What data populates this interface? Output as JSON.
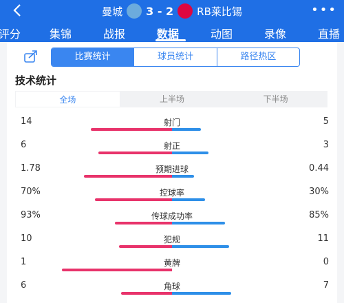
{
  "header": {
    "home_team": "曼城",
    "score": "3 - 2",
    "away_team": "RB莱比锡",
    "home_logo_color": "#6cabdd",
    "away_logo_color": "#dd0741",
    "more_label": "•••"
  },
  "nav_tabs": [
    {
      "label": "评分"
    },
    {
      "label": "集锦"
    },
    {
      "label": "战报"
    },
    {
      "label": "数据",
      "active": true
    },
    {
      "label": "动图"
    },
    {
      "label": "录像"
    },
    {
      "label": "直播"
    }
  ],
  "segments": [
    {
      "label": "比赛统计",
      "active": true
    },
    {
      "label": "球员统计"
    },
    {
      "label": "路径热区"
    }
  ],
  "section_title": "技术统计",
  "periods": [
    {
      "label": "全场",
      "active": true
    },
    {
      "label": "上半场"
    },
    {
      "label": "下半场"
    }
  ],
  "stats": [
    {
      "name": "射门",
      "home": "14",
      "away": "5",
      "home_share": 0.74,
      "away_share": 0.26
    },
    {
      "name": "射正",
      "home": "6",
      "away": "3",
      "home_share": 0.67,
      "away_share": 0.33
    },
    {
      "name": "预期进球",
      "home": "1.78",
      "away": "0.44",
      "home_share": 0.8,
      "away_share": 0.2
    },
    {
      "name": "控球率",
      "home": "70%",
      "away": "30%",
      "home_share": 0.7,
      "away_share": 0.3
    },
    {
      "name": "传球成功率",
      "home": "93%",
      "away": "85%",
      "home_share": 0.52,
      "away_share": 0.48
    },
    {
      "name": "犯规",
      "home": "10",
      "away": "11",
      "home_share": 0.48,
      "away_share": 0.52
    },
    {
      "name": "黄牌",
      "home": "1",
      "away": "0",
      "home_share": 1.0,
      "away_share": 0.0
    },
    {
      "name": "角球",
      "home": "6",
      "away": "7",
      "home_share": 0.46,
      "away_share": 0.54
    }
  ],
  "colors": {
    "brand": "#1f6fe5",
    "accent": "#3a86f0",
    "home_bar": "#e8336b",
    "away_bar": "#2e8fe8"
  }
}
